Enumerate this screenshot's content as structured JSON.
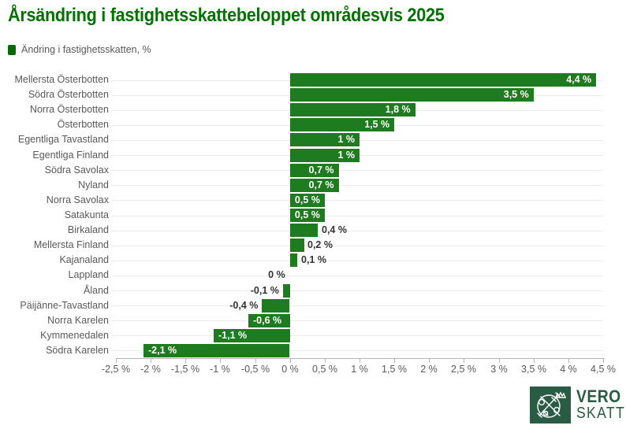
{
  "title": "Årsändring i fastighetsskattebeloppet områdesvis 2025",
  "legend": {
    "label": "Ändring i fastighetsskatten, %"
  },
  "colors": {
    "title_text": "#017101",
    "bar": "#1f7b1f",
    "legend_swatch": "#056a05",
    "axis_text": "#595959",
    "value_text_inside": "#ffffff",
    "value_text_outside": "#333333",
    "gridline": "#ececec",
    "logo_green": "#2a5c45"
  },
  "chart_data": {
    "type": "bar",
    "orientation": "horizontal",
    "title": "Årsändring i fastighetsskattebeloppet områdesvis 2025",
    "series_name": "Ändring i fastighetsskatten, %",
    "categories": [
      "Mellersta Österbotten",
      "Södra Österbotten",
      "Norra Österbotten",
      "Österbotten",
      "Egentliga Tavastland",
      "Egentliga Finland",
      "Södra Savolax",
      "Nyland",
      "Norra Savolax",
      "Satakunta",
      "Birkaland",
      "Mellersta Finland",
      "Kajanaland",
      "Lappland",
      "Åland",
      "Päijänne-Tavastland",
      "Norra Karelen",
      "Kymmenedalen",
      "Södra Karelen"
    ],
    "values": [
      4.4,
      3.5,
      1.8,
      1.5,
      1.0,
      1.0,
      0.7,
      0.7,
      0.5,
      0.5,
      0.4,
      0.2,
      0.1,
      0.0,
      -0.1,
      -0.4,
      -0.6,
      -1.1,
      -2.1
    ],
    "value_labels": [
      "4,4 %",
      "3,5 %",
      "1,8 %",
      "1,5 %",
      "1 %",
      "1 %",
      "0,7 %",
      "0,7 %",
      "0,5 %",
      "0,5 %",
      "0,4 %",
      "0,2 %",
      "0,1 %",
      "0 %",
      "-0,1 %",
      "-0,4 %",
      "-0,6 %",
      "-1,1 %",
      "-2,1 %"
    ],
    "xlabel": "",
    "ylabel": "",
    "xlim": [
      -2.5,
      4.5
    ],
    "x_ticks": [
      "-2,5 %",
      "-2 %",
      "-1,5 %",
      "-1 %",
      "-0,5 %",
      "0 %",
      "0,5 %",
      "1 %",
      "1,5 %",
      "2 %",
      "2,5 %",
      "3 %",
      "3,5 %",
      "4 %",
      "4,5 %"
    ],
    "x_tick_values": [
      -2.5,
      -2,
      -1.5,
      -1,
      -0.5,
      0,
      0.5,
      1,
      1.5,
      2,
      2.5,
      3,
      3.5,
      4,
      4.5
    ],
    "grid": "horizontal category lines",
    "legend_position": "top-left"
  },
  "logo": {
    "line1": "VERO",
    "line2": "SKATT"
  }
}
